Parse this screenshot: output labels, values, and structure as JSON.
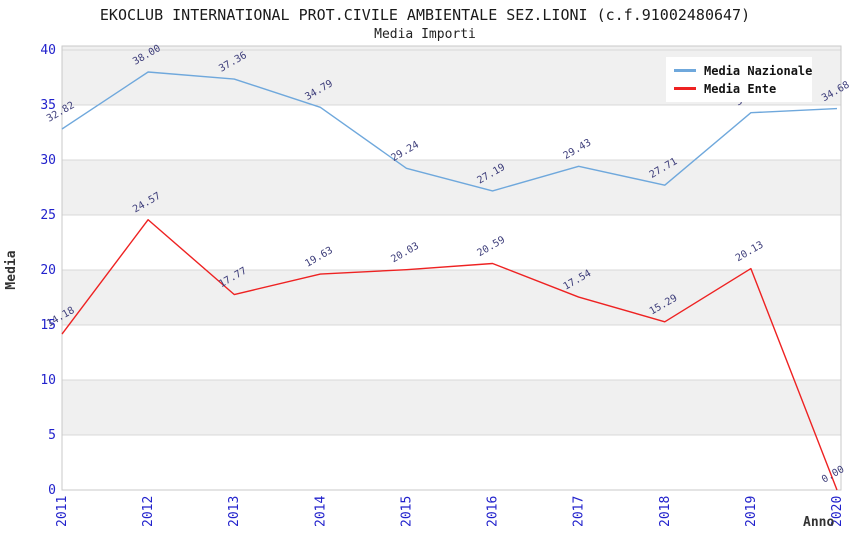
{
  "header": {
    "title": "EKOCLUB INTERNATIONAL PROT.CIVILE AMBIENTALE SEZ.LIONI (c.f.91002480647)",
    "subtitle": "Media Importi"
  },
  "chart_data": {
    "type": "line",
    "title": "EKOCLUB INTERNATIONAL PROT.CIVILE AMBIENTALE SEZ.LIONI (c.f.91002480647)",
    "subtitle": "Media Importi",
    "xlabel": "Anno",
    "ylabel": "Media",
    "x": [
      "2011",
      "2012",
      "2013",
      "2014",
      "2015",
      "2016",
      "2017",
      "2018",
      "2019",
      "2020"
    ],
    "ylim": [
      0,
      40
    ],
    "y_ticks": [
      0,
      5,
      10,
      15,
      20,
      25,
      30,
      35,
      40
    ],
    "grid": "horizontal-only",
    "band_ranges": [
      [
        35,
        40
      ],
      [
        25,
        30
      ],
      [
        15,
        20
      ],
      [
        5,
        10
      ]
    ],
    "legend_position": "top-right-inside",
    "series": [
      {
        "name": "Media Nazionale",
        "color": "#6fa8dc",
        "values": [
          32.82,
          38.0,
          37.36,
          34.79,
          29.24,
          27.19,
          29.43,
          27.71,
          34.3,
          34.68
        ],
        "labels": [
          "32.82",
          "38.00",
          "37.36",
          "34.79",
          "29.24",
          "27.19",
          "29.43",
          "27.71",
          "34.30",
          "34.68"
        ]
      },
      {
        "name": "Media Ente",
        "color": "#ee2222",
        "values": [
          14.18,
          24.57,
          17.77,
          19.63,
          20.03,
          20.59,
          17.54,
          15.29,
          20.13,
          0.0
        ],
        "labels": [
          "14.18",
          "24.57",
          "17.77",
          "19.63",
          "20.03",
          "20.59",
          "17.54",
          "15.29",
          "20.13",
          "0.00"
        ]
      }
    ],
    "colors": {
      "band": "#f0f0f0",
      "grid": "#d8d8d8",
      "border": "#c9c9c9",
      "axis_text": "#2222cc",
      "value_text": "#3d3d7a",
      "title_text": "#1a1a1a",
      "axis_title_text": "#333333"
    }
  }
}
